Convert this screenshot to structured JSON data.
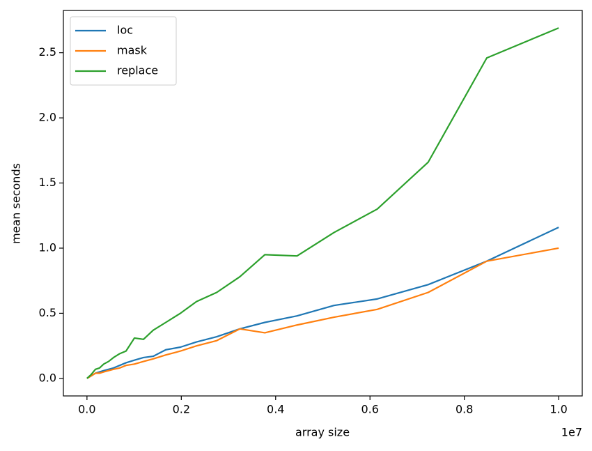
{
  "chart_data": {
    "type": "line",
    "xlabel": "array size",
    "ylabel": "mean seconds",
    "x_offset_label": "1e7",
    "x": [
      0,
      90000,
      180000,
      266000,
      355000,
      458000,
      562000,
      695000,
      828000,
      1006000,
      1198000,
      1405000,
      1672000,
      1982000,
      2322000,
      2751000,
      3240000,
      3772000,
      4453000,
      5237000,
      6154000,
      7234000,
      8476000,
      10000000
    ],
    "series": [
      {
        "name": "loc",
        "color": "#1f77b4",
        "values": [
          0,
          0.02,
          0.04,
          0.05,
          0.06,
          0.07,
          0.08,
          0.1,
          0.12,
          0.14,
          0.16,
          0.17,
          0.22,
          0.24,
          0.28,
          0.32,
          0.38,
          0.43,
          0.48,
          0.56,
          0.61,
          0.72,
          0.9,
          1.16
        ]
      },
      {
        "name": "mask",
        "color": "#ff7f0e",
        "values": [
          0,
          0.02,
          0.04,
          0.04,
          0.05,
          0.06,
          0.07,
          0.08,
          0.1,
          0.11,
          0.13,
          0.15,
          0.18,
          0.21,
          0.25,
          0.29,
          0.38,
          0.35,
          0.41,
          0.47,
          0.53,
          0.66,
          0.9,
          1.0
        ]
      },
      {
        "name": "replace",
        "color": "#2ca02c",
        "values": [
          0,
          0.03,
          0.07,
          0.08,
          0.11,
          0.13,
          0.16,
          0.19,
          0.21,
          0.31,
          0.3,
          0.37,
          0.43,
          0.5,
          0.59,
          0.66,
          0.78,
          0.95,
          0.94,
          1.12,
          1.3,
          1.66,
          2.46,
          2.69
        ]
      }
    ],
    "xlim": [
      -500000,
      10500000
    ],
    "xticks": [
      {
        "value": 0,
        "label": "0.0"
      },
      {
        "value": 2000000,
        "label": "0.2"
      },
      {
        "value": 4000000,
        "label": "0.4"
      },
      {
        "value": 6000000,
        "label": "0.6"
      },
      {
        "value": 8000000,
        "label": "0.8"
      },
      {
        "value": 10000000,
        "label": "1.0"
      }
    ],
    "ylim": [
      -0.1345,
      2.8245
    ],
    "yticks": [
      {
        "value": 0,
        "label": "0.0"
      },
      0.5,
      {
        "value": 1,
        "label": "1.0"
      },
      1.5,
      {
        "value": 2,
        "label": "2.0"
      },
      2.5
    ],
    "legend": "upper left",
    "grid": false
  }
}
